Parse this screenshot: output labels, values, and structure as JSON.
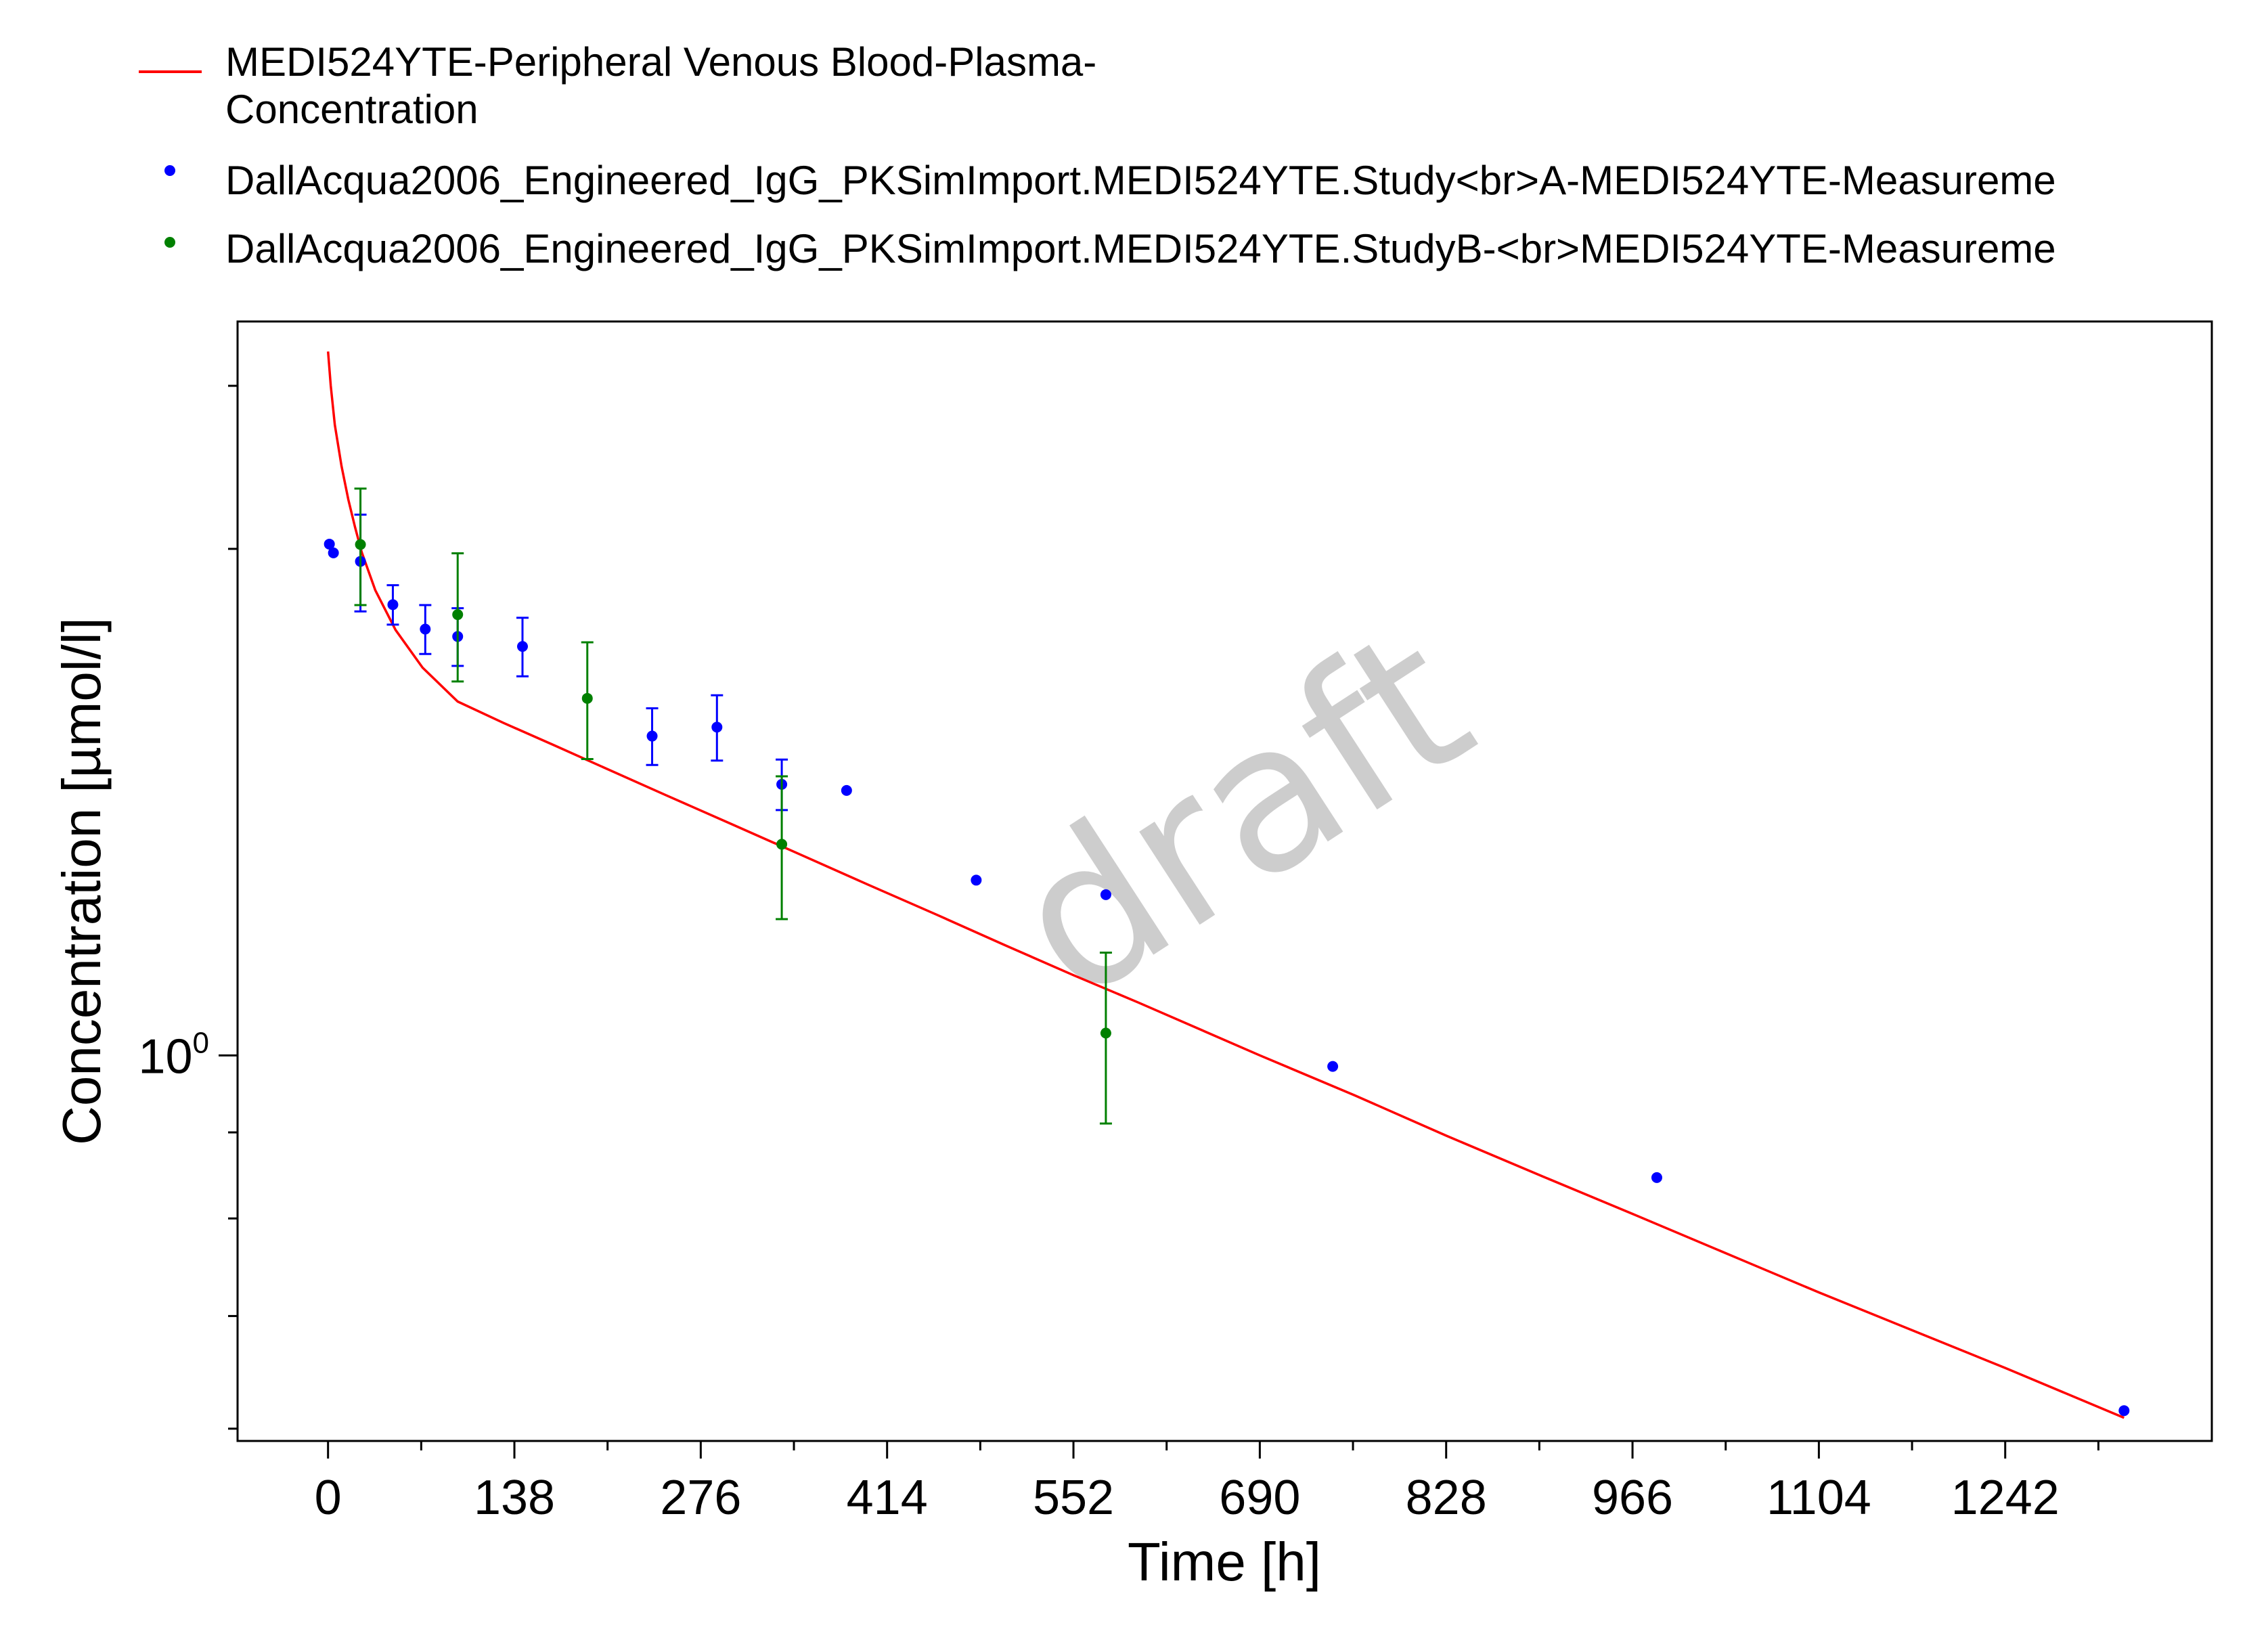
{
  "chart_data": {
    "type": "line",
    "legend": {
      "placement": "top",
      "entries": [
        {
          "line1": "MEDI524YTE-Peripheral Venous Blood-Plasma-",
          "line2": "Concentration",
          "style": "line",
          "color": "#ff0000"
        },
        {
          "line1": "DallAcqua2006_Engineered_IgG_PKSimImport.MEDI524YTE.Study<br>A-MEDI524YTE-Measureme",
          "line2": "",
          "style": "marker",
          "color": "#0000ff"
        },
        {
          "line1": "DallAcqua2006_Engineered_IgG_PKSimImport.MEDI524YTE.StudyB-<br>MEDI524YTE-Measureme",
          "line2": "",
          "style": "marker",
          "color": "#008000"
        }
      ]
    },
    "xlabel": "Time [h]",
    "ylabel": "Concentration [µmol/l]",
    "xlim": [
      -67,
      1395
    ],
    "ylim": [
      0.59,
      2.73
    ],
    "yscale": "log",
    "grid": false,
    "x_ticks": [
      {
        "value": 0,
        "label": "0"
      },
      {
        "value": 138,
        "label": "138"
      },
      {
        "value": 276,
        "label": "276"
      },
      {
        "value": 414,
        "label": "414"
      },
      {
        "value": 552,
        "label": "552"
      },
      {
        "value": 690,
        "label": "690"
      },
      {
        "value": 828,
        "label": "828"
      },
      {
        "value": 966,
        "label": "966"
      },
      {
        "value": 1104,
        "label": "1104"
      },
      {
        "value": 1242,
        "label": "1242"
      }
    ],
    "y_ticks": [
      {
        "value": 1.0,
        "base": "10",
        "exp": "0"
      }
    ],
    "y_minor_ticks": [
      0.6,
      0.7,
      0.8,
      0.9,
      2.0,
      2.5
    ],
    "watermark": "draft",
    "series": [
      {
        "name": "MEDI524YTE-Peripheral Venous Blood-Plasma-Concentration",
        "kind": "line",
        "color": "#ff0000",
        "x": [
          0,
          2,
          5,
          10,
          15,
          20,
          25,
          35,
          50,
          70,
          96,
          130,
          168,
          200,
          250,
          300,
          350,
          400,
          450,
          500,
          552,
          600,
          690,
          760,
          828,
          900,
          966,
          1050,
          1104,
          1180,
          1242,
          1330
        ],
        "y": [
          2.62,
          2.5,
          2.37,
          2.24,
          2.14,
          2.06,
          1.99,
          1.89,
          1.79,
          1.7,
          1.623,
          1.576,
          1.528,
          1.488,
          1.428,
          1.371,
          1.316,
          1.263,
          1.213,
          1.164,
          1.116,
          1.075,
          1.0,
          0.947,
          0.896,
          0.847,
          0.805,
          0.754,
          0.723,
          0.683,
          0.652,
          0.609
        ]
      },
      {
        "name": "DallAcqua2006_Engineered_IgG_PKSimImport.MEDI524YTE.Study<br>A-MEDI524YTE-Measureme",
        "kind": "scatter",
        "color": "#0000ff",
        "x": [
          1,
          4,
          24,
          48,
          72,
          96,
          144,
          240,
          288,
          336,
          384,
          480,
          576,
          744,
          984,
          1330
        ],
        "y": [
          2.013,
          1.989,
          1.966,
          1.853,
          1.792,
          1.774,
          1.75,
          1.548,
          1.567,
          1.449,
          1.437,
          1.271,
          1.246,
          0.985,
          0.846,
          0.615
        ],
        "err": [
          null,
          null,
          0.13,
          0.05,
          0.06,
          0.07,
          0.07,
          0.06,
          0.07,
          0.05,
          null,
          null,
          null,
          null,
          null,
          null
        ]
      },
      {
        "name": "DallAcqua2006_Engineered_IgG_PKSimImport.MEDI524YTE.StudyB-<br>MEDI524YTE-Measureme",
        "kind": "scatter",
        "color": "#008000",
        "x": [
          24,
          96,
          192,
          336,
          576
        ],
        "y": [
          2.012,
          1.828,
          1.63,
          1.335,
          1.031
        ],
        "err": [
          0.16,
          0.16,
          0.13,
          0.13,
          0.12
        ]
      }
    ]
  }
}
